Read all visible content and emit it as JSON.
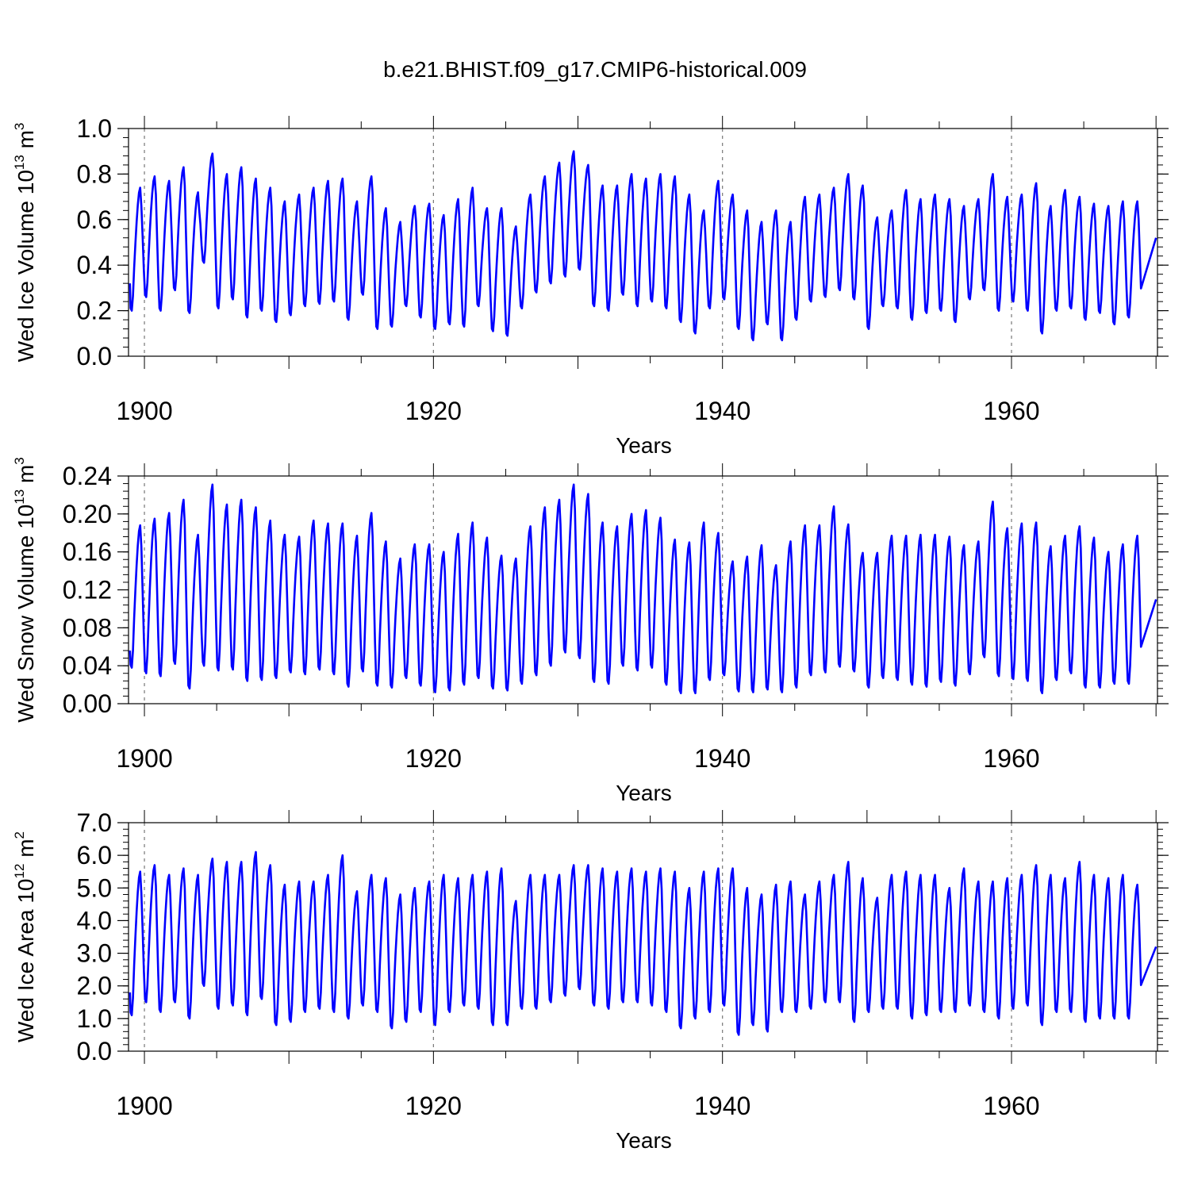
{
  "title": "b.e21.BHIST.f09_g17.CMIP6-historical.009",
  "line_color": "#0000ff",
  "chart_data": [
    {
      "type": "line",
      "name": "ice-volume",
      "ylabel_prefix": "Wed Ice Volume 10",
      "ylabel_exp": "13",
      "ylabel_unit": " m",
      "ylabel_unit_exp": "3",
      "xlabel": "Years",
      "xlim": [
        1898.9,
        1970.1
      ],
      "ylim": [
        0.0,
        1.0
      ],
      "yticks": [
        "0.0",
        "0.2",
        "0.4",
        "0.6",
        "0.8",
        "1.0"
      ],
      "ytick_values": [
        0.0,
        0.2,
        0.4,
        0.6,
        0.8,
        1.0
      ],
      "xticks": [
        "1900",
        "1920",
        "1940",
        "1960"
      ],
      "xtick_values": [
        1900,
        1920,
        1940,
        1960
      ],
      "x_start": 1899.0,
      "x_end": 1970.0,
      "series_start": 0.32,
      "series_end": 0.52,
      "annual_max": [
        0.74,
        0.79,
        0.77,
        0.83,
        0.72,
        0.89,
        0.8,
        0.83,
        0.78,
        0.74,
        0.68,
        0.71,
        0.74,
        0.77,
        0.78,
        0.68,
        0.79,
        0.65,
        0.59,
        0.66,
        0.67,
        0.62,
        0.69,
        0.74,
        0.65,
        0.65,
        0.57,
        0.71,
        0.79,
        0.85,
        0.9,
        0.84,
        0.75,
        0.75,
        0.8,
        0.78,
        0.8,
        0.79,
        0.71,
        0.64,
        0.77,
        0.71,
        0.64,
        0.59,
        0.64,
        0.59,
        0.7,
        0.71,
        0.74,
        0.8,
        0.75,
        0.61,
        0.64,
        0.73,
        0.69,
        0.71,
        0.69,
        0.66,
        0.69,
        0.8,
        0.7,
        0.71,
        0.76,
        0.66,
        0.73,
        0.7,
        0.67,
        0.66,
        0.68,
        0.68
      ],
      "annual_min": [
        0.2,
        0.26,
        0.2,
        0.29,
        0.19,
        0.41,
        0.21,
        0.25,
        0.17,
        0.2,
        0.15,
        0.18,
        0.22,
        0.23,
        0.24,
        0.16,
        0.27,
        0.12,
        0.13,
        0.22,
        0.17,
        0.12,
        0.14,
        0.13,
        0.22,
        0.11,
        0.09,
        0.21,
        0.28,
        0.32,
        0.35,
        0.38,
        0.22,
        0.2,
        0.27,
        0.22,
        0.24,
        0.21,
        0.15,
        0.1,
        0.21,
        0.25,
        0.12,
        0.07,
        0.14,
        0.07,
        0.16,
        0.24,
        0.26,
        0.29,
        0.25,
        0.12,
        0.22,
        0.21,
        0.16,
        0.19,
        0.2,
        0.15,
        0.25,
        0.29,
        0.2,
        0.24,
        0.2,
        0.1,
        0.2,
        0.21,
        0.16,
        0.19,
        0.14,
        0.17
      ]
    },
    {
      "type": "line",
      "name": "snow-volume",
      "ylabel_prefix": "Wed Snow Volume 10",
      "ylabel_exp": "13",
      "ylabel_unit": " m",
      "ylabel_unit_exp": "3",
      "xlabel": "Years",
      "xlim": [
        1898.9,
        1970.1
      ],
      "ylim": [
        0.0,
        0.24
      ],
      "yticks": [
        "0.00",
        "0.04",
        "0.08",
        "0.12",
        "0.16",
        "0.20",
        "0.24"
      ],
      "ytick_values": [
        0.0,
        0.04,
        0.08,
        0.12,
        0.16,
        0.2,
        0.24
      ],
      "xticks": [
        "1900",
        "1920",
        "1940",
        "1960"
      ],
      "xtick_values": [
        1900,
        1920,
        1940,
        1960
      ],
      "x_start": 1899.0,
      "x_end": 1970.0,
      "series_start": 0.056,
      "series_end": 0.11,
      "annual_max": [
        0.188,
        0.195,
        0.201,
        0.215,
        0.178,
        0.231,
        0.21,
        0.215,
        0.207,
        0.193,
        0.178,
        0.176,
        0.193,
        0.19,
        0.19,
        0.177,
        0.201,
        0.171,
        0.153,
        0.168,
        0.168,
        0.16,
        0.179,
        0.191,
        0.175,
        0.156,
        0.153,
        0.187,
        0.207,
        0.215,
        0.231,
        0.221,
        0.191,
        0.187,
        0.2,
        0.204,
        0.196,
        0.173,
        0.17,
        0.191,
        0.18,
        0.15,
        0.155,
        0.167,
        0.146,
        0.171,
        0.188,
        0.188,
        0.208,
        0.189,
        0.159,
        0.159,
        0.177,
        0.177,
        0.178,
        0.178,
        0.176,
        0.167,
        0.171,
        0.213,
        0.185,
        0.19,
        0.191,
        0.166,
        0.177,
        0.187,
        0.175,
        0.16,
        0.168,
        0.177
      ],
      "annual_min": [
        0.038,
        0.032,
        0.029,
        0.042,
        0.016,
        0.04,
        0.035,
        0.036,
        0.024,
        0.025,
        0.027,
        0.033,
        0.031,
        0.036,
        0.031,
        0.018,
        0.034,
        0.019,
        0.017,
        0.027,
        0.019,
        0.012,
        0.014,
        0.02,
        0.027,
        0.016,
        0.014,
        0.021,
        0.03,
        0.04,
        0.054,
        0.048,
        0.023,
        0.021,
        0.04,
        0.035,
        0.038,
        0.02,
        0.011,
        0.011,
        0.025,
        0.03,
        0.013,
        0.012,
        0.015,
        0.012,
        0.017,
        0.03,
        0.033,
        0.039,
        0.034,
        0.017,
        0.027,
        0.025,
        0.02,
        0.018,
        0.023,
        0.019,
        0.031,
        0.049,
        0.029,
        0.026,
        0.024,
        0.011,
        0.025,
        0.032,
        0.017,
        0.017,
        0.021,
        0.021
      ]
    },
    {
      "type": "line",
      "name": "ice-area",
      "ylabel_prefix": "Wed Ice Area 10",
      "ylabel_exp": "12",
      "ylabel_unit": " m",
      "ylabel_unit_exp": "2",
      "xlabel": "Years",
      "xlim": [
        1898.9,
        1970.1
      ],
      "ylim": [
        0.0,
        7.0
      ],
      "yticks": [
        "0.0",
        "1.0",
        "2.0",
        "3.0",
        "4.0",
        "5.0",
        "6.0",
        "7.0"
      ],
      "ytick_values": [
        0.0,
        1.0,
        2.0,
        3.0,
        4.0,
        5.0,
        6.0,
        7.0
      ],
      "xticks": [
        "1900",
        "1920",
        "1940",
        "1960"
      ],
      "xtick_values": [
        1900,
        1920,
        1940,
        1960
      ],
      "x_start": 1899.0,
      "x_end": 1970.0,
      "series_start": 1.8,
      "series_end": 3.2,
      "annual_max": [
        5.5,
        5.7,
        5.4,
        5.6,
        5.4,
        5.9,
        5.8,
        5.8,
        6.1,
        5.7,
        5.1,
        5.2,
        5.2,
        5.4,
        6.0,
        4.9,
        5.4,
        5.3,
        4.8,
        5.0,
        5.2,
        5.4,
        5.3,
        5.4,
        5.5,
        5.6,
        4.6,
        5.4,
        5.4,
        5.4,
        5.7,
        5.7,
        5.6,
        5.5,
        5.6,
        5.5,
        5.6,
        5.5,
        5.0,
        5.5,
        5.6,
        5.6,
        5.0,
        4.8,
        5.1,
        5.2,
        4.8,
        5.2,
        5.4,
        5.8,
        5.3,
        4.7,
        5.4,
        5.5,
        5.4,
        5.4,
        5.0,
        5.6,
        5.2,
        5.2,
        5.3,
        5.4,
        5.7,
        5.4,
        5.3,
        5.8,
        5.4,
        5.3,
        5.4,
        5.1
      ],
      "annual_min": [
        1.1,
        1.5,
        1.2,
        1.5,
        1.0,
        2.0,
        1.3,
        1.4,
        1.1,
        1.6,
        0.8,
        0.9,
        1.2,
        1.3,
        1.2,
        1.0,
        1.4,
        1.2,
        0.7,
        0.9,
        1.2,
        0.8,
        1.2,
        1.4,
        1.3,
        0.8,
        0.8,
        1.3,
        1.3,
        1.5,
        1.7,
        1.9,
        1.4,
        1.3,
        1.5,
        1.5,
        1.4,
        1.2,
        0.7,
        1.0,
        1.2,
        1.4,
        0.5,
        0.8,
        0.6,
        1.2,
        1.2,
        1.3,
        1.5,
        1.5,
        0.9,
        1.2,
        1.3,
        1.3,
        1.0,
        1.1,
        1.2,
        1.2,
        1.4,
        1.2,
        1.0,
        1.3,
        1.4,
        0.8,
        1.2,
        1.2,
        0.9,
        1.0,
        1.0,
        1.0
      ]
    }
  ]
}
